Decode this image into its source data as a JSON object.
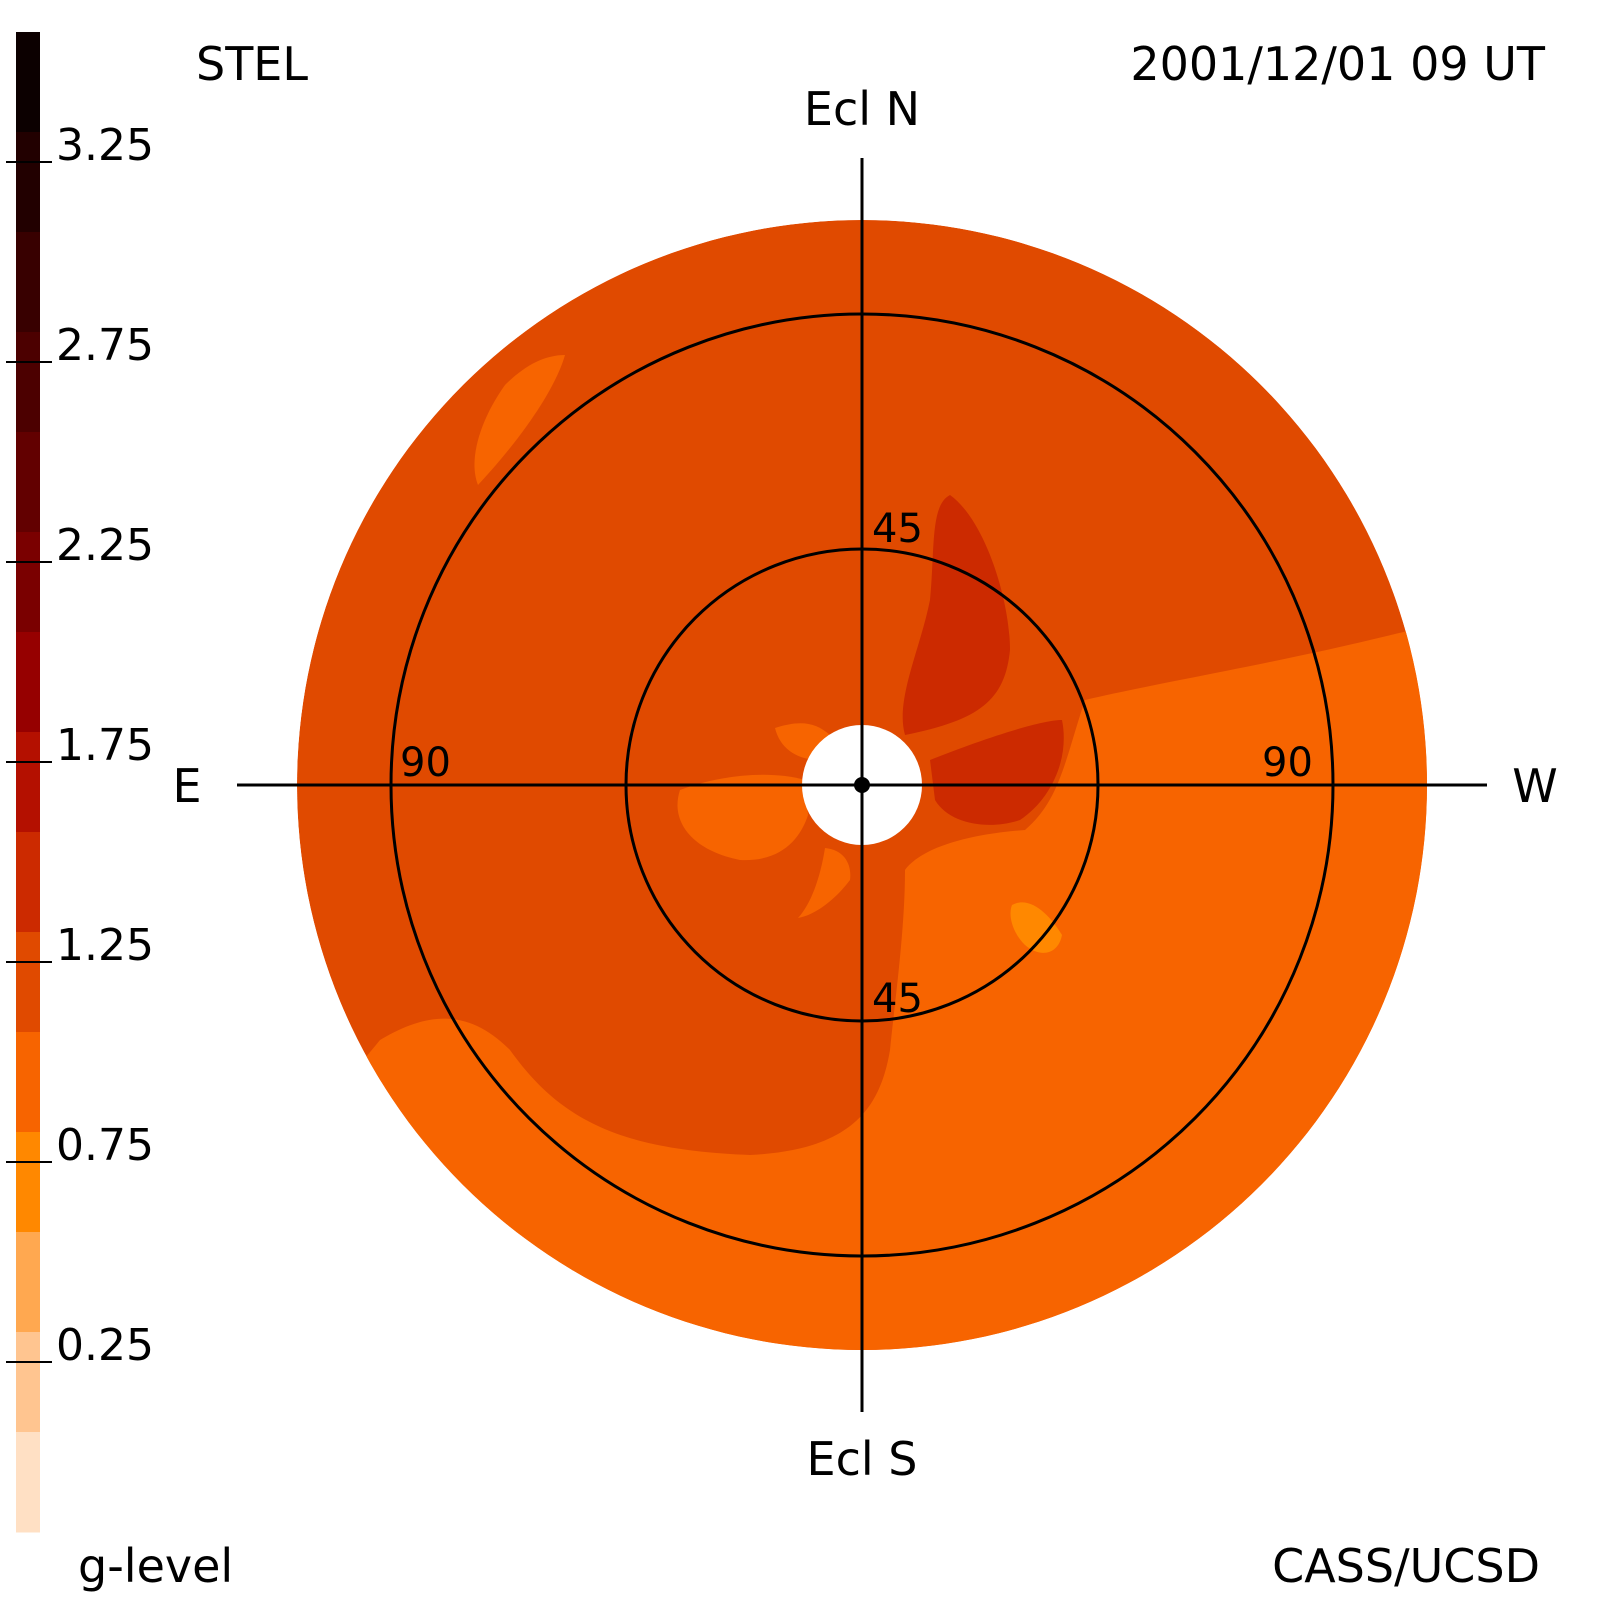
{
  "header": {
    "instrument": "STEL",
    "datetime": "2001/12/01 09 UT"
  },
  "footer": {
    "quantity_label": "g-level",
    "credit": "CASS/UCSD"
  },
  "directions": {
    "north": "Ecl N",
    "south": "Ecl S",
    "east": "E",
    "west": "W"
  },
  "rings": {
    "inner": "45",
    "outer": "90"
  },
  "colorbar": {
    "tick_labels": [
      "3.25",
      "2.75",
      "2.25",
      "1.75",
      "1.25",
      "0.75",
      "0.25"
    ],
    "bands": [
      {
        "level": 3.375,
        "color": "#0c0000"
      },
      {
        "level": 3.125,
        "color": "#220000"
      },
      {
        "level": 2.875,
        "color": "#380000"
      },
      {
        "level": 2.625,
        "color": "#4c0000"
      },
      {
        "level": 2.375,
        "color": "#620000"
      },
      {
        "level": 2.125,
        "color": "#7a0000"
      },
      {
        "level": 1.875,
        "color": "#960000"
      },
      {
        "level": 1.625,
        "color": "#b41000"
      },
      {
        "level": 1.375,
        "color": "#cc2a00"
      },
      {
        "level": 1.125,
        "color": "#e04a00"
      },
      {
        "level": 0.875,
        "color": "#f76400"
      },
      {
        "level": 0.625,
        "color": "#ff8800"
      },
      {
        "level": 0.375,
        "color": "#ffa850"
      },
      {
        "level": 0.125,
        "color": "#ffc590"
      },
      {
        "level": -0.125,
        "color": "#ffe0c4"
      }
    ]
  },
  "palette": {
    "disk_base": "#e04a00",
    "low_region": "#f76400",
    "high_region": "#cc2a00",
    "min_spot": "#ff8800"
  }
}
